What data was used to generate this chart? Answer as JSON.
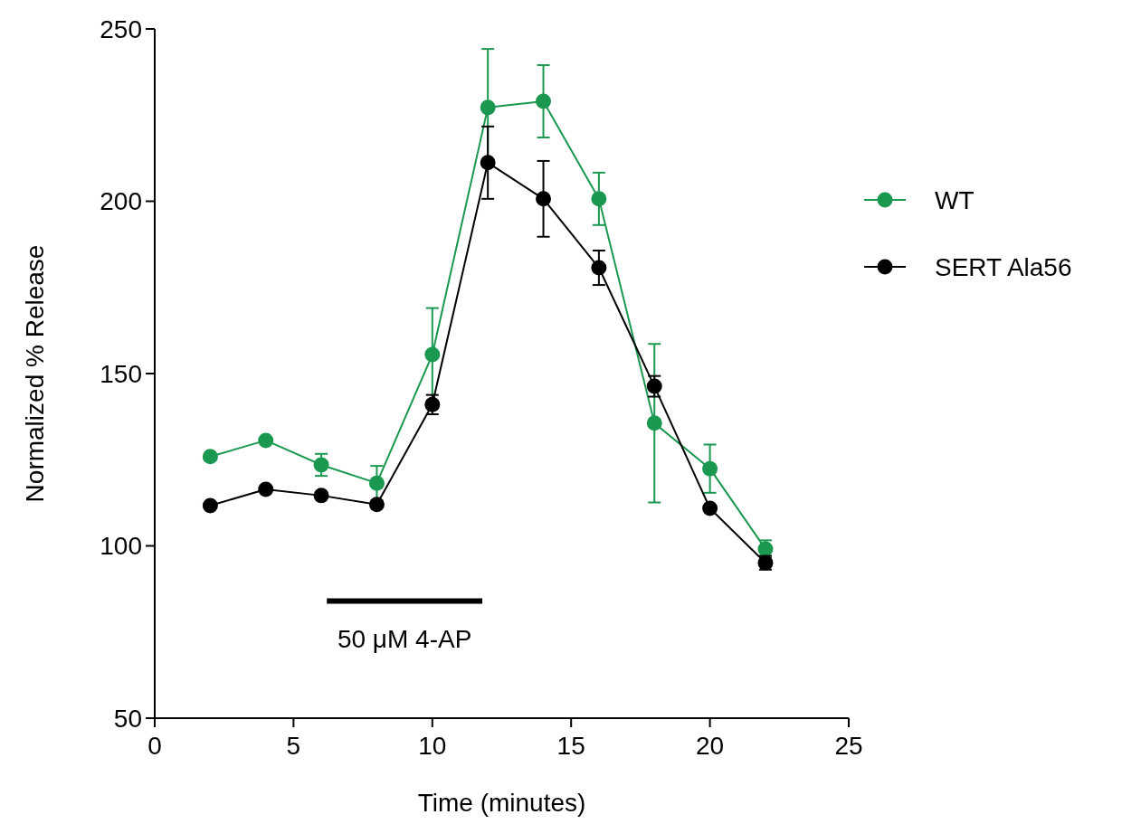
{
  "chart_data": {
    "type": "line",
    "xlabel": "Time (minutes)",
    "ylabel": "Normalized % Release",
    "x": [
      2,
      4,
      6,
      8,
      10,
      12,
      14,
      16,
      18,
      20,
      22
    ],
    "series": [
      {
        "name": "WT",
        "color": "#1a9850",
        "values": [
          125.9,
          130.6,
          123.5,
          118.2,
          155.5,
          227.2,
          229,
          200.7,
          135.6,
          122.4,
          99.1
        ],
        "errors": [
          null,
          null,
          3.2,
          5,
          13.5,
          17,
          10.5,
          7.6,
          23,
          7,
          2.5
        ]
      },
      {
        "name": "SERT Ala56",
        "color": "#000000",
        "values": [
          111.7,
          116.4,
          114.6,
          112,
          141,
          211.2,
          200.7,
          180.7,
          146.3,
          110.9,
          95.1
        ],
        "errors": [
          null,
          null,
          null,
          null,
          2.8,
          10.5,
          11,
          5,
          3,
          null,
          2
        ]
      },
      {
        "type": "line",
        "marker": "none",
        "color": "#000000",
        "x": [
          6.2,
          11.8
        ],
        "values": [
          84,
          84
        ]
      }
    ],
    "annotations": [
      "50 μM 4-AP"
    ],
    "xlim": [
      0,
      25
    ],
    "xticks": [
      0,
      5,
      10,
      15,
      20,
      25
    ],
    "ylim": [
      50,
      250
    ],
    "yticks": [
      50,
      100,
      150,
      200,
      250
    ],
    "marker": "circle",
    "legend": "right",
    "grid": false
  }
}
